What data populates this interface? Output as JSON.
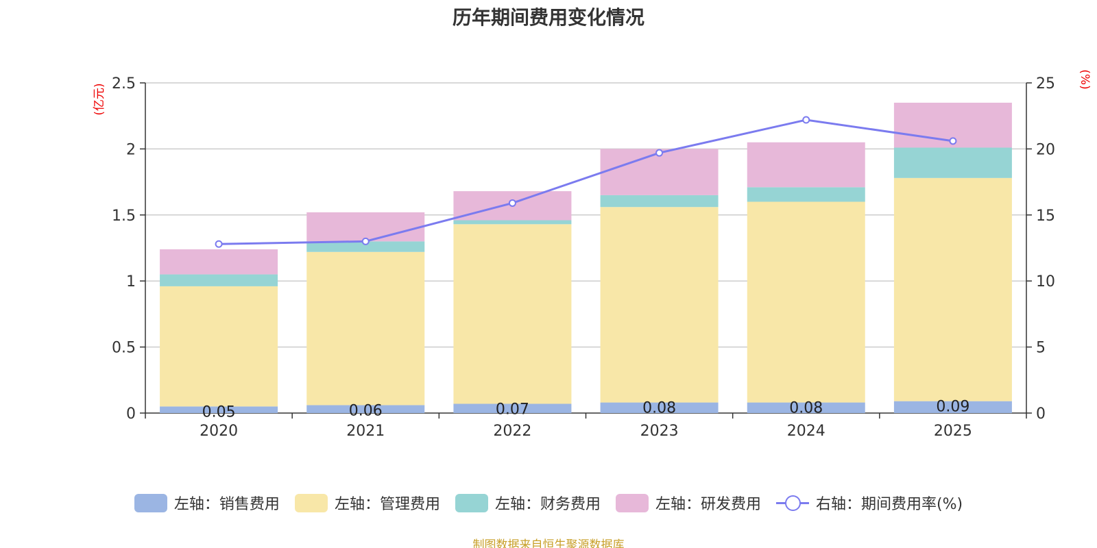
{
  "chart_data": {
    "type": "bar",
    "stacked": true,
    "title": "历年期间费用变化情况",
    "categories": [
      "2020",
      "2021",
      "2022",
      "2023",
      "2024",
      "2025"
    ],
    "left_axis": {
      "unit_label": "(亿元)",
      "ylim": [
        0,
        2.5
      ],
      "ticks": [
        0,
        0.5,
        1,
        1.5,
        2,
        2.5
      ],
      "tick_labels": [
        "0",
        "0.5",
        "1",
        "1.5",
        "2",
        "2.5"
      ]
    },
    "right_axis": {
      "unit_label": "(%)",
      "ylim": [
        0,
        25
      ],
      "ticks": [
        0,
        5,
        10,
        15,
        20,
        25
      ],
      "tick_labels": [
        "0",
        "5",
        "10",
        "15",
        "20",
        "25"
      ]
    },
    "series": [
      {
        "name": "左轴：销售费用",
        "color": "#9bb5e3",
        "values": [
          0.05,
          0.06,
          0.07,
          0.08,
          0.08,
          0.09
        ],
        "labels": [
          "0.05",
          "0.06",
          "0.07",
          "0.08",
          "0.08",
          "0.09"
        ]
      },
      {
        "name": "左轴：管理费用",
        "color": "#f8e7a8",
        "values": [
          0.91,
          1.16,
          1.36,
          1.48,
          1.52,
          1.69
        ]
      },
      {
        "name": "左轴：财务费用",
        "color": "#96d4d4",
        "values": [
          0.09,
          0.08,
          0.03,
          0.09,
          0.11,
          0.23
        ]
      },
      {
        "name": "左轴：研发费用",
        "color": "#e7b8d9",
        "values": [
          0.19,
          0.22,
          0.22,
          0.35,
          0.34,
          0.34
        ]
      }
    ],
    "line_series": {
      "name": "右轴：期间费用率(%)",
      "color": "#7b7bef",
      "axis": "right",
      "values": [
        12.8,
        13.0,
        15.9,
        19.7,
        22.2,
        20.6
      ]
    },
    "legend_position": "bottom",
    "grid": true
  },
  "source": "制图数据来自恒生聚源数据库"
}
